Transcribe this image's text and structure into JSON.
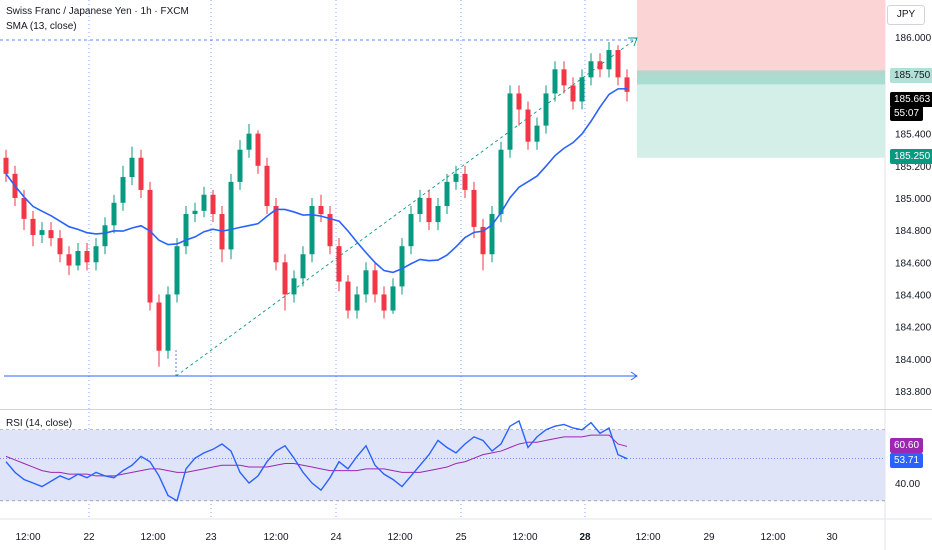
{
  "header": {
    "symbol": "Swiss Franc / Japanese Yen · 1h · FXCM",
    "indicator": "SMA (13, close)",
    "rsi_label": "RSI (14, close)"
  },
  "currency": "JPY",
  "colors": {
    "up": "#089981",
    "down": "#f23645",
    "sma": "#2962ff",
    "rsi": "#2962ff",
    "rsi_ma": "#9c27b0",
    "rsi_band": "#dfe4f8",
    "stop_zone": "#fbd4d6",
    "target_zone": "#d3efe8"
  },
  "price_tags": [
    {
      "label": "185.750",
      "value": 185.75,
      "style": "entry"
    },
    {
      "label": "185.663",
      "value": 185.663,
      "style": "current"
    },
    {
      "label": "55:07",
      "value": null,
      "style": "countdown"
    },
    {
      "label": "185.250",
      "value": 185.25,
      "style": "target"
    }
  ],
  "rsi_tags": [
    {
      "label": "60.60",
      "value": 60.6,
      "style": "ma"
    },
    {
      "label": "53.71",
      "value": 53.71,
      "style": "rsi"
    }
  ],
  "chart_data": {
    "type": "candlestick",
    "interval": "1h",
    "price_axis": {
      "ticks": [
        "186.000",
        "185.400",
        "185.200",
        "185.000",
        "184.800",
        "184.600",
        "184.400",
        "184.200",
        "184.000",
        "183.800"
      ],
      "ylim": [
        183.7,
        186.2
      ]
    },
    "time_axis": {
      "ticks": [
        "12:00",
        "22",
        "12:00",
        "23",
        "12:00",
        "24",
        "12:00",
        "25",
        "12:00",
        "28",
        "12:00",
        "29",
        "12:00",
        "30"
      ]
    },
    "series": [
      {
        "name": "CHFJPY",
        "kind": "ohlc",
        "open": [
          185.25,
          185.15,
          185.0,
          184.87,
          184.77,
          184.8,
          184.75,
          184.65,
          184.58,
          184.67,
          184.6,
          184.7,
          184.83,
          184.97,
          185.13,
          185.25,
          185.05,
          184.35,
          184.05,
          184.4,
          184.7,
          184.9,
          184.92,
          185.02,
          184.9,
          184.68,
          185.1,
          185.3,
          185.4,
          185.2,
          184.95,
          184.6,
          184.4,
          184.5,
          184.65,
          184.95,
          184.9,
          184.7,
          184.48,
          184.3,
          184.4,
          184.55,
          184.4,
          184.3,
          184.45,
          184.7,
          184.9,
          185.0,
          184.85,
          184.95,
          185.1,
          185.15,
          185.05,
          184.82,
          184.65,
          184.9,
          185.3,
          185.65,
          185.55,
          185.35,
          185.45,
          185.65,
          185.8,
          185.7,
          185.6,
          185.75,
          185.85,
          185.8,
          185.92,
          185.75
        ],
        "close": [
          185.15,
          185.0,
          184.87,
          184.77,
          184.8,
          184.75,
          184.65,
          184.58,
          184.67,
          184.6,
          184.7,
          184.83,
          184.97,
          185.13,
          185.25,
          185.05,
          184.35,
          184.05,
          184.4,
          184.7,
          184.9,
          184.92,
          185.02,
          184.9,
          184.68,
          185.1,
          185.3,
          185.4,
          185.2,
          184.95,
          184.6,
          184.4,
          184.5,
          184.65,
          184.95,
          184.9,
          184.7,
          184.48,
          184.3,
          184.4,
          184.55,
          184.4,
          184.3,
          184.45,
          184.7,
          184.9,
          185.0,
          184.85,
          184.95,
          185.1,
          185.15,
          185.05,
          184.82,
          184.65,
          184.9,
          185.3,
          185.65,
          185.55,
          185.35,
          185.45,
          185.65,
          185.8,
          185.7,
          185.6,
          185.75,
          185.85,
          185.8,
          185.92,
          185.75,
          185.66
        ],
        "high": [
          185.3,
          185.2,
          185.05,
          184.92,
          184.85,
          184.85,
          184.8,
          184.7,
          184.72,
          184.72,
          184.75,
          184.88,
          185.02,
          185.2,
          185.32,
          185.3,
          185.1,
          184.4,
          184.45,
          184.75,
          184.95,
          184.97,
          185.07,
          185.05,
          184.95,
          185.15,
          185.36,
          185.46,
          185.42,
          185.25,
          185.0,
          184.65,
          184.55,
          184.7,
          185.0,
          185.02,
          184.95,
          184.75,
          184.52,
          184.45,
          184.6,
          184.6,
          184.45,
          184.5,
          184.75,
          184.95,
          185.05,
          185.05,
          185.0,
          185.15,
          185.2,
          185.2,
          185.1,
          184.87,
          184.95,
          185.35,
          185.7,
          185.7,
          185.6,
          185.5,
          185.7,
          185.85,
          185.85,
          185.75,
          185.8,
          185.9,
          185.9,
          185.97,
          185.95,
          185.8
        ],
        "low": [
          185.1,
          184.95,
          184.8,
          184.7,
          184.72,
          184.7,
          184.6,
          184.52,
          184.55,
          184.55,
          184.55,
          184.65,
          184.78,
          184.92,
          185.08,
          185.0,
          184.3,
          183.95,
          184.0,
          184.35,
          184.65,
          184.85,
          184.88,
          184.85,
          184.6,
          184.62,
          185.05,
          185.25,
          185.15,
          184.9,
          184.55,
          184.3,
          184.35,
          184.45,
          184.6,
          184.85,
          184.65,
          184.42,
          184.25,
          184.25,
          184.35,
          184.35,
          184.25,
          184.28,
          184.4,
          184.65,
          184.85,
          184.8,
          184.8,
          184.9,
          185.05,
          185.0,
          184.75,
          184.55,
          184.6,
          184.85,
          185.25,
          185.45,
          185.3,
          185.3,
          185.4,
          185.6,
          185.65,
          185.55,
          185.55,
          185.7,
          185.75,
          185.75,
          185.7,
          185.6
        ]
      },
      {
        "name": "SMA (13, close)",
        "kind": "line"
      }
    ],
    "trade_box": {
      "entry": 185.75,
      "stop": 186.25,
      "target": 185.25
    },
    "rsi": {
      "ticks": [
        "40.00"
      ],
      "ylim": [
        22,
        80
      ],
      "band": [
        30,
        70
      ],
      "values": [
        52,
        46,
        42,
        40,
        38,
        41,
        44,
        42,
        45,
        43,
        46,
        44,
        43,
        47,
        50,
        55,
        52,
        44,
        33,
        30,
        48,
        54,
        57,
        59,
        62,
        58,
        46,
        40,
        44,
        52,
        58,
        61,
        54,
        46,
        40,
        36,
        43,
        52,
        48,
        55,
        61,
        50,
        45,
        42,
        38,
        44,
        50,
        56,
        64,
        60,
        57,
        62,
        66,
        64,
        58,
        62,
        72,
        75,
        60,
        66,
        70,
        72,
        73,
        71,
        70,
        74,
        68,
        71,
        56,
        53.71
      ],
      "ma_values": [
        55,
        53,
        51,
        49,
        47,
        46,
        46,
        45,
        45,
        45,
        44,
        44,
        44,
        45,
        46,
        47,
        48,
        48,
        47,
        46,
        46,
        47,
        48,
        49,
        50,
        50,
        50,
        49,
        49,
        49,
        50,
        51,
        51,
        50,
        49,
        48,
        47,
        47,
        47,
        47,
        48,
        48,
        48,
        47,
        46,
        46,
        46,
        47,
        48,
        49,
        51,
        52,
        54,
        56,
        57,
        58,
        60,
        62,
        63,
        63,
        64,
        65,
        66,
        66,
        66,
        67,
        67,
        67,
        62,
        60.6
      ]
    }
  }
}
